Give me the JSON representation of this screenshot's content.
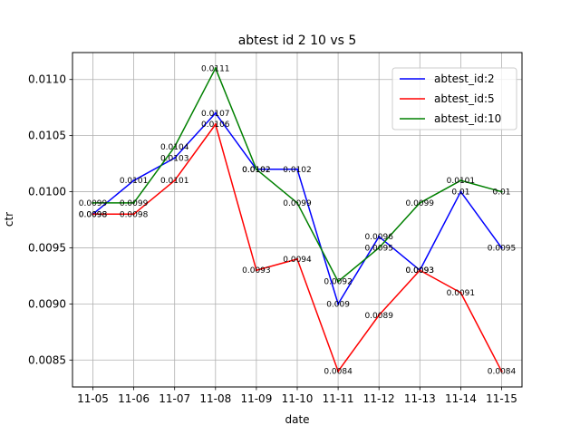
{
  "chart_data": {
    "type": "line",
    "title": "abtest id 2 10 vs 5",
    "xlabel": "date",
    "ylabel": "ctr",
    "categories": [
      "11-05",
      "11-06",
      "11-07",
      "11-08",
      "11-09",
      "11-10",
      "11-11",
      "11-12",
      "11-13",
      "11-14",
      "11-15"
    ],
    "ylim": [
      0.00826,
      0.01124
    ],
    "yticks": [
      0.0085,
      0.009,
      0.0095,
      0.01,
      0.0105,
      0.011
    ],
    "ytick_labels": [
      "0.0085",
      "0.0090",
      "0.0095",
      "0.0100",
      "0.0105",
      "0.0110"
    ],
    "grid": true,
    "legend_position": "top-right",
    "series": [
      {
        "name": "abtest_id:2",
        "color": "#0000ff",
        "values": [
          0.0098,
          0.0101,
          0.0103,
          0.0107,
          0.0102,
          0.0102,
          0.009,
          0.0096,
          0.0093,
          0.01,
          0.0095
        ],
        "labels": [
          "0.0098",
          "0.0101",
          "0.0103",
          "0.0107",
          "0.0102",
          "0.0102",
          "0.009",
          "0.0096",
          "0.0093",
          "0.01",
          "0.0095"
        ]
      },
      {
        "name": "abtest_id:5",
        "color": "#ff0000",
        "values": [
          0.0098,
          0.0098,
          0.0101,
          0.0106,
          0.0093,
          0.0094,
          0.0084,
          0.0089,
          0.0093,
          0.0091,
          0.0084
        ],
        "labels": [
          "0.0098",
          "0.0098",
          "0.0101",
          "0.0106",
          "0.0093",
          "0.0094",
          "0.0084",
          "0.0089",
          "0.0093",
          "0.0091",
          "0.0084"
        ]
      },
      {
        "name": "abtest_id:10",
        "color": "#008000",
        "values": [
          0.0099,
          0.0099,
          0.0104,
          0.0111,
          0.0102,
          0.0099,
          0.0092,
          0.0095,
          0.0099,
          0.0101,
          0.01
        ],
        "labels": [
          "0.0099",
          "0.0099",
          "0.0104",
          "0.0111",
          "0.0102",
          "0.0099",
          "0.0092",
          "0.0095",
          "0.0099",
          "0.0101",
          "0.01"
        ]
      }
    ]
  }
}
